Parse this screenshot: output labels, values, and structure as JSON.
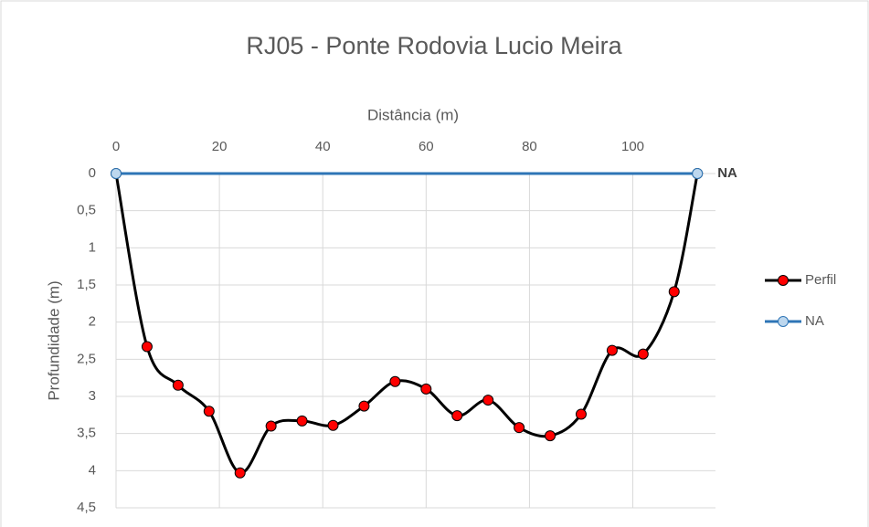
{
  "chart_data": {
    "type": "scatter",
    "title": "RJ05 - Ponte Rodovia Lucio Meira",
    "x_label": "Distância (m)",
    "y_label": "Profundidade (m)",
    "annotation": "NA",
    "xlim": [
      0,
      116
    ],
    "xticks": [
      0,
      20,
      40,
      60,
      80,
      100
    ],
    "ylim": [
      0,
      4.5
    ],
    "y_inverted": true,
    "yticks": [
      0,
      {
        "value": 0.5,
        "label": "0,5"
      },
      1,
      {
        "value": 1.5,
        "label": "1,5"
      },
      2,
      {
        "value": 2.5,
        "label": "2,5"
      },
      3,
      {
        "value": 3.5,
        "label": "3,5"
      },
      4,
      {
        "value": 4.5,
        "label": "4,5"
      }
    ],
    "grid": true,
    "smooth": true,
    "legend": "right",
    "series": [
      {
        "name": "Perfil",
        "color": "#000000",
        "marker_color": "#ff0000",
        "x": [
          0,
          6,
          12,
          18,
          24,
          30,
          36,
          42,
          48,
          54,
          60,
          66,
          72,
          78,
          84,
          90,
          96,
          102,
          108,
          112.5
        ],
        "values": [
          0,
          2.33,
          2.85,
          3.2,
          4.03,
          3.4,
          3.33,
          3.39,
          3.13,
          2.8,
          2.9,
          3.26,
          3.05,
          3.42,
          3.53,
          3.24,
          2.38,
          2.43,
          1.59,
          0
        ]
      },
      {
        "name": "NA",
        "color": "#2e75b6",
        "marker_color": "#bdd7ee",
        "x": [
          0,
          112.5
        ],
        "values": [
          0,
          0
        ]
      }
    ]
  }
}
